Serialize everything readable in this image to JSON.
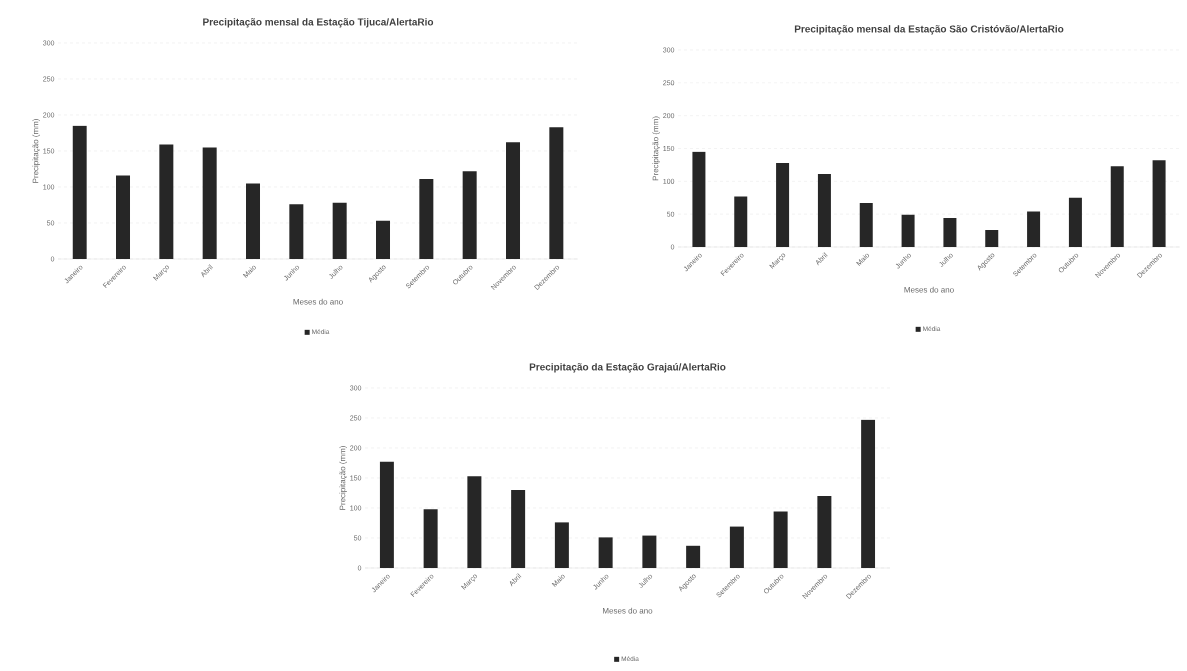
{
  "chart_data": [
    {
      "type": "bar",
      "title": "Precipitação mensal da Estação Tijuca/AlertaRio",
      "xlabel": "Meses do ano",
      "ylabel": "Precipitação (mm)",
      "categories": [
        "Janeiro",
        "Fevereiro",
        "Março",
        "Abril",
        "Maio",
        "Junho",
        "Julho",
        "Agosto",
        "Setembro",
        "Outubro",
        "Novembro",
        "Dezembro"
      ],
      "series": [
        {
          "name": "Média",
          "color": "#262626",
          "values": [
            185,
            116,
            159,
            155,
            105,
            76,
            78,
            53,
            111,
            122,
            162,
            183
          ]
        }
      ],
      "ylim": [
        0,
        300
      ],
      "yticks": [
        0,
        50,
        100,
        150,
        200,
        250,
        300
      ],
      "grid": "y",
      "legend": "bottom"
    },
    {
      "type": "bar",
      "title": "Precipitação mensal da Estação São Cristóvão/AlertaRio",
      "xlabel": "Meses do ano",
      "ylabel": "Precipitação (mm)",
      "categories": [
        "Janeiro",
        "Fevereiro",
        "Março",
        "Abril",
        "Maio",
        "Junho",
        "Julho",
        "Agosto",
        "Setembro",
        "Outubro",
        "Novembro",
        "Dezembro"
      ],
      "series": [
        {
          "name": "Média",
          "color": "#262626",
          "values": [
            145,
            77,
            128,
            111,
            67,
            49,
            44,
            26,
            54,
            75,
            123,
            132
          ]
        }
      ],
      "ylim": [
        0,
        300
      ],
      "yticks": [
        0,
        50,
        100,
        150,
        200,
        250,
        300
      ],
      "grid": "y",
      "legend": "bottom"
    },
    {
      "type": "bar",
      "title": "Precipitação da Estação Grajaú/AlertaRio",
      "xlabel": "Meses do ano",
      "ylabel": "Precipitação (mm)",
      "categories": [
        "Janeiro",
        "Fevereiro",
        "Março",
        "Abril",
        "Maio",
        "Junho",
        "Julho",
        "Agosto",
        "Setembro",
        "Outubro",
        "Novembro",
        "Dezembro"
      ],
      "series": [
        {
          "name": "Média",
          "color": "#262626",
          "values": [
            177,
            98,
            153,
            130,
            76,
            51,
            54,
            37,
            69,
            94,
            120,
            247
          ]
        }
      ],
      "ylim": [
        0,
        300
      ],
      "yticks": [
        0,
        50,
        100,
        150,
        200,
        250,
        300
      ],
      "grid": "y",
      "legend": "bottom"
    }
  ]
}
